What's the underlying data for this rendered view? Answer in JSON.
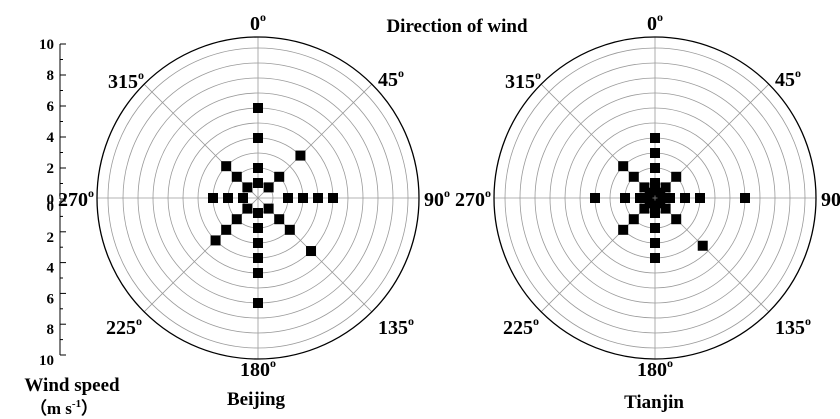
{
  "chart_data": [
    {
      "type": "scatter",
      "subtype": "polar",
      "title": "",
      "panel_label": "Beijing",
      "direction_labels": [
        "0",
        "45",
        "90",
        "135",
        "180",
        "225",
        "270",
        "315"
      ],
      "degree_symbol": "o",
      "radial_range": [
        0,
        10
      ],
      "grid": true,
      "points": [
        {
          "direction": 0,
          "speed": 1
        },
        {
          "direction": 0,
          "speed": 2
        },
        {
          "direction": 0,
          "speed": 4
        },
        {
          "direction": 0,
          "speed": 6
        },
        {
          "direction": 45,
          "speed": 1
        },
        {
          "direction": 45,
          "speed": 2
        },
        {
          "direction": 45,
          "speed": 4
        },
        {
          "direction": 90,
          "speed": 2
        },
        {
          "direction": 90,
          "speed": 3
        },
        {
          "direction": 90,
          "speed": 4
        },
        {
          "direction": 90,
          "speed": 5
        },
        {
          "direction": 135,
          "speed": 1
        },
        {
          "direction": 135,
          "speed": 2
        },
        {
          "direction": 135,
          "speed": 3
        },
        {
          "direction": 135,
          "speed": 5
        },
        {
          "direction": 180,
          "speed": 1
        },
        {
          "direction": 180,
          "speed": 2
        },
        {
          "direction": 180,
          "speed": 3
        },
        {
          "direction": 180,
          "speed": 4
        },
        {
          "direction": 180,
          "speed": 5
        },
        {
          "direction": 180,
          "speed": 7
        },
        {
          "direction": 225,
          "speed": 1
        },
        {
          "direction": 225,
          "speed": 2
        },
        {
          "direction": 225,
          "speed": 3
        },
        {
          "direction": 225,
          "speed": 4
        },
        {
          "direction": 270,
          "speed": 1
        },
        {
          "direction": 270,
          "speed": 2
        },
        {
          "direction": 270,
          "speed": 3
        },
        {
          "direction": 315,
          "speed": 1
        },
        {
          "direction": 315,
          "speed": 2
        },
        {
          "direction": 315,
          "speed": 3
        }
      ]
    },
    {
      "type": "scatter",
      "subtype": "polar",
      "title": "Direction of wind",
      "panel_label": "Tianjin",
      "direction_labels": [
        "0",
        "45",
        "90",
        "135",
        "180",
        "225",
        "270",
        "315"
      ],
      "degree_symbol": "o",
      "radial_range": [
        0,
        10
      ],
      "grid": true,
      "points": [
        {
          "direction": 0,
          "speed": 0.5
        },
        {
          "direction": 0,
          "speed": 1
        },
        {
          "direction": 0,
          "speed": 2
        },
        {
          "direction": 0,
          "speed": 3
        },
        {
          "direction": 0,
          "speed": 4
        },
        {
          "direction": 45,
          "speed": 0.5
        },
        {
          "direction": 45,
          "speed": 1
        },
        {
          "direction": 45,
          "speed": 2
        },
        {
          "direction": 90,
          "speed": 0.5
        },
        {
          "direction": 90,
          "speed": 1
        },
        {
          "direction": 90,
          "speed": 2
        },
        {
          "direction": 90,
          "speed": 3
        },
        {
          "direction": 90,
          "speed": 6
        },
        {
          "direction": 135,
          "speed": 0.5
        },
        {
          "direction": 135,
          "speed": 1
        },
        {
          "direction": 135,
          "speed": 2
        },
        {
          "direction": 135,
          "speed": 4.5
        },
        {
          "direction": 180,
          "speed": 0.5
        },
        {
          "direction": 180,
          "speed": 1
        },
        {
          "direction": 180,
          "speed": 2
        },
        {
          "direction": 180,
          "speed": 3
        },
        {
          "direction": 180,
          "speed": 4
        },
        {
          "direction": 225,
          "speed": 0.5
        },
        {
          "direction": 225,
          "speed": 1
        },
        {
          "direction": 225,
          "speed": 2
        },
        {
          "direction": 225,
          "speed": 3
        },
        {
          "direction": 270,
          "speed": 0.5
        },
        {
          "direction": 270,
          "speed": 1
        },
        {
          "direction": 270,
          "speed": 2
        },
        {
          "direction": 270,
          "speed": 4
        },
        {
          "direction": 315,
          "speed": 0.5
        },
        {
          "direction": 315,
          "speed": 1
        },
        {
          "direction": 315,
          "speed": 2
        },
        {
          "direction": 315,
          "speed": 3
        }
      ]
    }
  ],
  "speed_scale": {
    "label_line1": "Wind speed",
    "label_line2": "（m  s",
    "label_sup": "-1",
    "label_close": "）",
    "upper_ticks": [
      "10",
      "8",
      "6",
      "4",
      "2",
      "0"
    ],
    "lower_ticks": [
      "0",
      "2",
      "4",
      "6",
      "8",
      "10"
    ]
  },
  "colors": {
    "marker": "#000000",
    "grid": "#9a9a9a",
    "outline": "#000000",
    "background": "#ffffff"
  }
}
